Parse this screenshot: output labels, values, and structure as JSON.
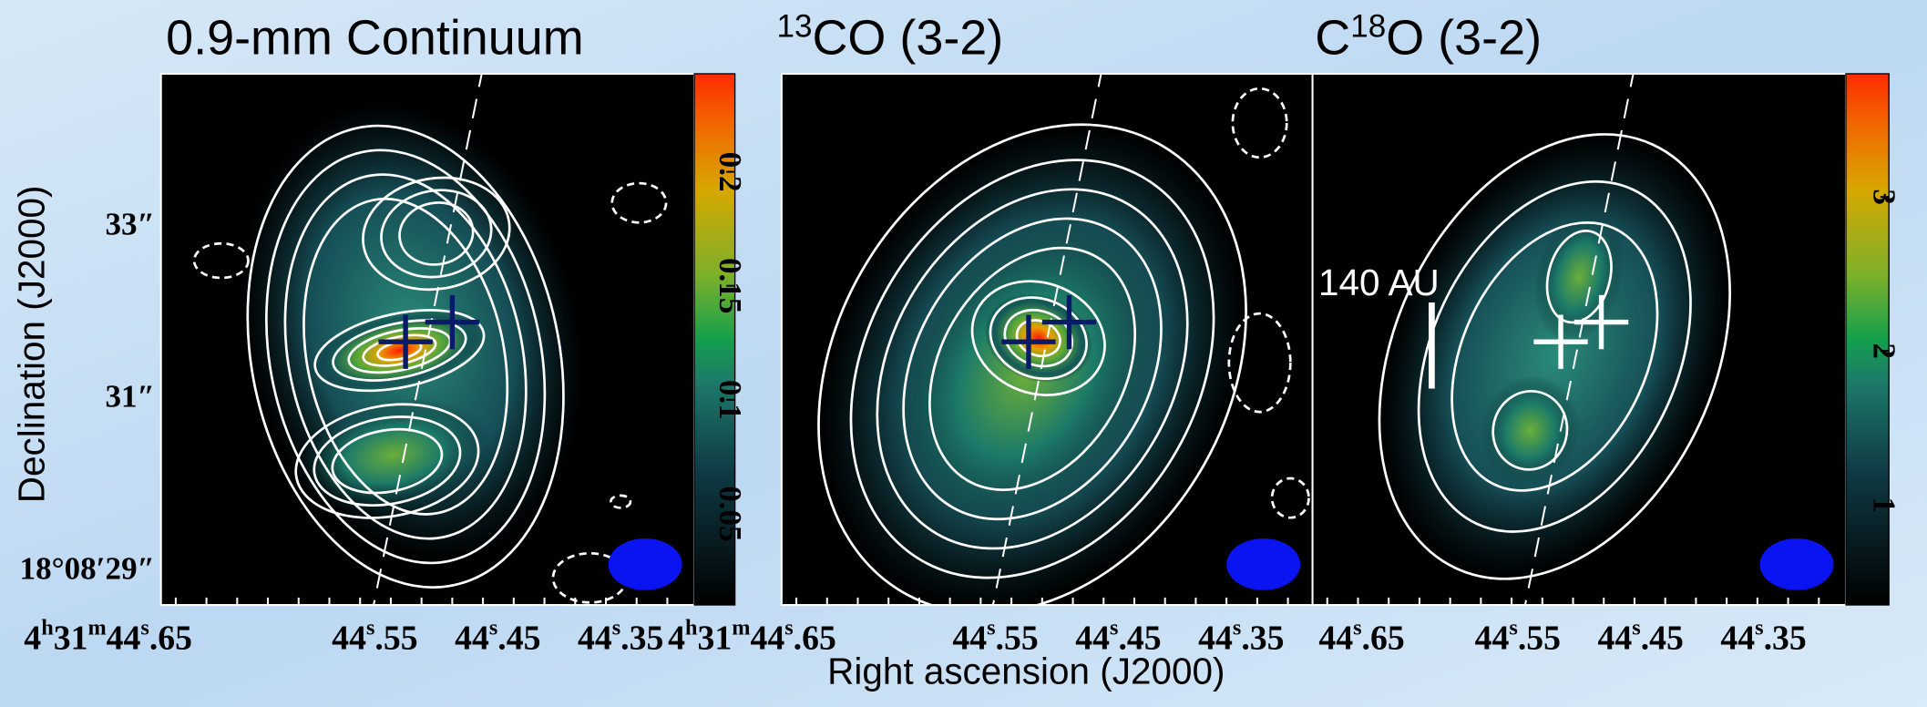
{
  "panels": [
    {
      "title": [
        {
          "text": "0.9-mm Continuum"
        }
      ],
      "x_tick_labels": [
        [
          "4",
          "h",
          "31",
          "m",
          "44",
          "s",
          ".65"
        ],
        [
          "44",
          "s",
          ".55"
        ],
        [
          "44",
          "s",
          ".45"
        ],
        [
          "44",
          "s",
          ".35"
        ]
      ],
      "colorbar": {
        "clim": [
          0.01,
          0.243
        ],
        "ticks": [
          0.05,
          0.1,
          0.15,
          0.2
        ]
      }
    },
    {
      "title": [
        {
          "text": "13",
          "sup": true
        },
        {
          "text": "CO (3-2)"
        }
      ],
      "x_tick_labels": [
        [
          "4",
          "h",
          "31",
          "m",
          "44",
          "s",
          ".65"
        ],
        [
          "44",
          "s",
          ".55"
        ],
        [
          "44",
          "s",
          ".45"
        ],
        [
          "44",
          "s",
          ".35"
        ]
      ]
    },
    {
      "title": [
        {
          "text": "C"
        },
        {
          "text": "18",
          "sup": true
        },
        {
          "text": "O (3-2)"
        }
      ],
      "annotation": "140 AU",
      "x_tick_labels": [
        [
          "44",
          "s",
          ".65"
        ],
        [
          "44",
          "s",
          ".55"
        ],
        [
          "44",
          "s",
          ".45"
        ],
        [
          "44",
          "s",
          ".35"
        ]
      ],
      "colorbar": {
        "clim": [
          0.35,
          3.8
        ],
        "ticks": [
          1,
          2,
          3
        ]
      }
    }
  ],
  "y_tick_labels": [
    "33″",
    "31″",
    "18°08′29″"
  ],
  "x_label": "Right ascension (J2000)",
  "y_label": "Declination (J2000)"
}
